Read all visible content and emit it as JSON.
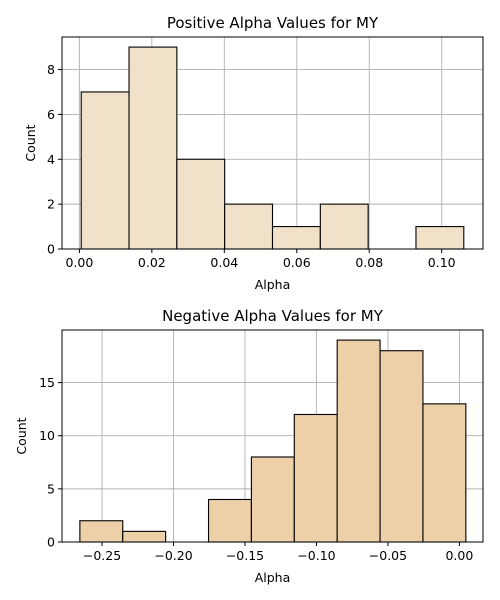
{
  "chart_data": [
    {
      "type": "bar",
      "title": "Positive Alpha Values for MY",
      "xlabel": "Alpha",
      "ylabel": "Count",
      "bar_color": "#f2e1c9",
      "bins": [
        {
          "x0": 0.0005,
          "x1": 0.0137,
          "count": 7
        },
        {
          "x0": 0.0137,
          "x1": 0.0269,
          "count": 9
        },
        {
          "x0": 0.0269,
          "x1": 0.0401,
          "count": 4
        },
        {
          "x0": 0.0401,
          "x1": 0.0533,
          "count": 2
        },
        {
          "x0": 0.0533,
          "x1": 0.0665,
          "count": 1
        },
        {
          "x0": 0.0665,
          "x1": 0.0797,
          "count": 2
        },
        {
          "x0": 0.0797,
          "x1": 0.0929,
          "count": 0
        },
        {
          "x0": 0.0929,
          "x1": 0.1061,
          "count": 1
        }
      ],
      "xlim": [
        -0.0048,
        0.1114
      ],
      "ylim": [
        0,
        9.45
      ],
      "xticks": [
        0.0,
        0.02,
        0.04,
        0.06,
        0.08,
        0.1
      ],
      "xtick_labels": [
        "0.00",
        "0.02",
        "0.04",
        "0.06",
        "0.08",
        "0.10"
      ],
      "yticks": [
        0,
        2,
        4,
        6,
        8
      ],
      "ytick_labels": [
        "0",
        "2",
        "4",
        "6",
        "8"
      ],
      "grid": true
    },
    {
      "type": "bar",
      "title": "Negative Alpha Values for MY",
      "xlabel": "Alpha",
      "ylabel": "Count",
      "bar_color": "#edd0a8",
      "bins": [
        {
          "x0": -0.2655,
          "x1": -0.2355,
          "count": 2
        },
        {
          "x0": -0.2355,
          "x1": -0.2055,
          "count": 1
        },
        {
          "x0": -0.2055,
          "x1": -0.1755,
          "count": 0
        },
        {
          "x0": -0.1755,
          "x1": -0.1455,
          "count": 4
        },
        {
          "x0": -0.1455,
          "x1": -0.1155,
          "count": 8
        },
        {
          "x0": -0.1155,
          "x1": -0.0855,
          "count": 12
        },
        {
          "x0": -0.0855,
          "x1": -0.0555,
          "count": 19
        },
        {
          "x0": -0.0555,
          "x1": -0.0255,
          "count": 18
        },
        {
          "x0": -0.0255,
          "x1": 0.0045,
          "count": 13
        }
      ],
      "xlim": [
        -0.278,
        0.0165
      ],
      "ylim": [
        0,
        19.95
      ],
      "xticks": [
        -0.25,
        -0.2,
        -0.15,
        -0.1,
        -0.05,
        0.0
      ],
      "xtick_labels": [
        "−0.25",
        "−0.20",
        "−0.15",
        "−0.10",
        "−0.05",
        "0.00"
      ],
      "yticks": [
        0,
        5,
        10,
        15
      ],
      "ytick_labels": [
        "0",
        "5",
        "10",
        "15"
      ],
      "grid": true
    }
  ]
}
